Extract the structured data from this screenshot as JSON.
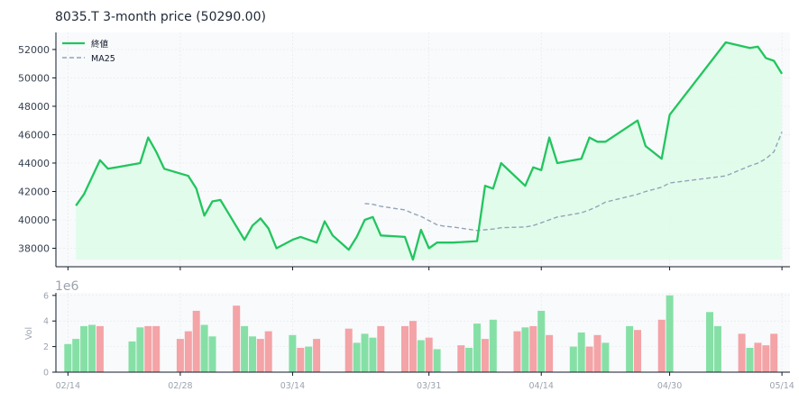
{
  "chart_data": {
    "type": "line",
    "title": "8035.T  3-month price (50290.00)",
    "colors": {
      "price": "#22c55e",
      "price_fill": "#dcfce7",
      "ma": "#94a3b8",
      "vol_up": "#86e0a6",
      "vol_down": "#f4a3a6",
      "plot_bg": "#f8fafc",
      "grid": "#e5e7eb"
    },
    "price_panel": {
      "ylim": [
        36700,
        53200
      ],
      "yticks": [
        38000,
        40000,
        42000,
        44000,
        46000,
        48000,
        50000,
        52000
      ],
      "ytick_labels": [
        "38000",
        "40000",
        "42000",
        "44000",
        "46000",
        "48000",
        "50000",
        "52000"
      ],
      "fill_base": 37200,
      "legend": {
        "position": "top-left",
        "entries": [
          "終値",
          "MA25"
        ]
      }
    },
    "volume_panel": {
      "ylabel": "Vol",
      "offset_label": "1e6",
      "ylim": [
        0,
        6.2
      ],
      "yticks": [
        0,
        2,
        4,
        6
      ],
      "ytick_labels": [
        "0",
        "2",
        "4",
        "6"
      ]
    },
    "xlim": [
      -1.5,
      90
    ],
    "xticks": [
      {
        "day": 0,
        "label": "02/14"
      },
      {
        "day": 14,
        "label": "02/28"
      },
      {
        "day": 28,
        "label": "03/14"
      },
      {
        "day": 45,
        "label": "03/31"
      },
      {
        "day": 59,
        "label": "04/14"
      },
      {
        "day": 75,
        "label": "04/30"
      },
      {
        "day": 89,
        "label": "05/14"
      }
    ],
    "series": [
      {
        "name": "終値",
        "x": [
          1,
          2,
          4,
          5,
          9,
          10,
          11,
          12,
          15,
          16,
          17,
          18,
          19,
          22,
          23,
          24,
          25,
          26,
          28,
          29,
          31,
          32,
          33,
          35,
          36,
          37,
          38,
          39,
          42,
          43,
          44,
          45,
          46,
          47,
          48,
          51,
          52,
          53,
          54,
          57,
          58,
          59,
          60,
          61,
          64,
          65,
          66,
          67,
          71,
          72,
          74,
          75,
          82,
          85,
          86,
          87,
          88,
          89
        ],
        "values": [
          41000,
          41800,
          44200,
          43600,
          44000,
          45800,
          44800,
          43600,
          43100,
          42200,
          40300,
          41300,
          41400,
          38600,
          39600,
          40100,
          39400,
          38000,
          38600,
          38800,
          38400,
          39900,
          38900,
          37900,
          38800,
          40000,
          40200,
          38900,
          38800,
          37200,
          39300,
          38000,
          38400,
          38400,
          38400,
          38500,
          42400,
          42200,
          44000,
          42400,
          43700,
          43500,
          45800,
          44000,
          44300,
          45800,
          45500,
          45500,
          47000,
          45200,
          44300,
          47400,
          52500,
          52100,
          52200,
          51400,
          51200,
          50290
        ]
      },
      {
        "name": "MA25",
        "x": [
          37,
          38,
          39,
          42,
          43,
          44,
          45,
          46,
          47,
          48,
          51,
          52,
          53,
          54,
          57,
          58,
          59,
          60,
          61,
          64,
          65,
          66,
          67,
          71,
          72,
          74,
          75,
          82,
          85,
          86,
          87,
          88,
          89
        ],
        "values": [
          41150,
          41100,
          40950,
          40700,
          40450,
          40250,
          39950,
          39650,
          39550,
          39500,
          39250,
          39300,
          39350,
          39450,
          39500,
          39600,
          39800,
          40000,
          40200,
          40500,
          40700,
          40950,
          41250,
          41800,
          42000,
          42300,
          42600,
          43100,
          43800,
          44000,
          44300,
          44800,
          46200
        ]
      }
    ],
    "volume": {
      "x": [
        0,
        1,
        2,
        3,
        4,
        8,
        9,
        10,
        11,
        14,
        15,
        16,
        17,
        18,
        21,
        22,
        23,
        24,
        25,
        28,
        29,
        30,
        31,
        35,
        36,
        37,
        38,
        39,
        42,
        43,
        44,
        45,
        46,
        49,
        50,
        51,
        52,
        53,
        56,
        57,
        58,
        59,
        60,
        63,
        64,
        65,
        66,
        67,
        70,
        71,
        74,
        75,
        80,
        81,
        84,
        85,
        86,
        87,
        88
      ],
      "values": [
        2.2,
        2.6,
        3.6,
        3.7,
        3.6,
        2.4,
        3.5,
        3.6,
        3.6,
        2.6,
        3.2,
        4.8,
        3.7,
        2.8,
        5.2,
        3.6,
        2.8,
        2.6,
        3.2,
        2.9,
        1.9,
        2.0,
        2.6,
        3.4,
        2.3,
        3.0,
        2.7,
        3.6,
        3.6,
        4.0,
        2.5,
        2.7,
        1.8,
        2.1,
        1.9,
        3.8,
        2.6,
        4.1,
        3.2,
        3.5,
        3.6,
        4.8,
        2.9,
        2.0,
        3.1,
        2.0,
        2.9,
        2.3,
        3.6,
        3.3,
        4.1,
        6.0,
        4.7,
        3.6,
        3.0,
        1.9,
        2.3,
        2.1,
        3.0
      ],
      "up": [
        true,
        true,
        true,
        true,
        false,
        true,
        true,
        false,
        false,
        false,
        false,
        false,
        true,
        true,
        false,
        true,
        true,
        false,
        false,
        true,
        false,
        true,
        false,
        false,
        true,
        true,
        true,
        false,
        false,
        false,
        true,
        false,
        true,
        false,
        true,
        true,
        false,
        true,
        false,
        true,
        false,
        true,
        false,
        true,
        true,
        false,
        false,
        true,
        true,
        false,
        false,
        true,
        true,
        true,
        false,
        true,
        false,
        false,
        false
      ]
    }
  }
}
